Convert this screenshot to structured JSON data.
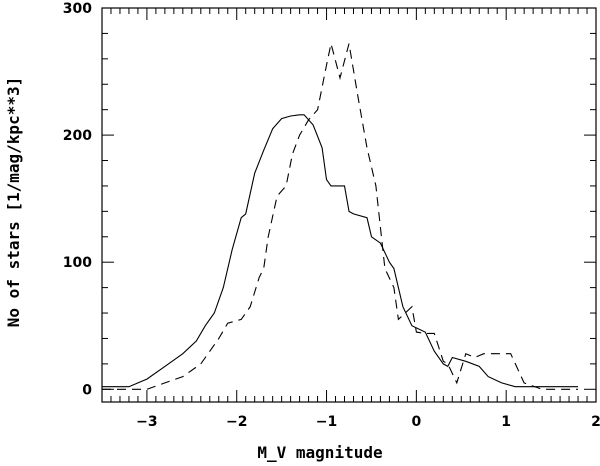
{
  "chart_data": {
    "type": "line",
    "title": "",
    "xlabel": "M_V magnitude",
    "ylabel": "No of stars [1/mag/kpc**3]",
    "xlim": [
      -3.5,
      2
    ],
    "ylim": [
      -10,
      300
    ],
    "x_ticks": [
      -3,
      -2,
      -1,
      0,
      1,
      2
    ],
    "x_tick_labels": [
      "−3",
      "−2",
      "−1",
      "0",
      "1",
      "2"
    ],
    "y_ticks": [
      0,
      100,
      200,
      300
    ],
    "y_tick_labels": [
      "0",
      "100",
      "200",
      "300"
    ],
    "grid": false,
    "legend": "none",
    "series": [
      {
        "style": "solid",
        "points": [
          [
            -3.5,
            2
          ],
          [
            -3.2,
            2
          ],
          [
            -3.0,
            8
          ],
          [
            -2.8,
            18
          ],
          [
            -2.6,
            28
          ],
          [
            -2.45,
            38
          ],
          [
            -2.35,
            50
          ],
          [
            -2.25,
            60
          ],
          [
            -2.15,
            80
          ],
          [
            -2.05,
            110
          ],
          [
            -1.95,
            135
          ],
          [
            -1.9,
            138
          ],
          [
            -1.8,
            170
          ],
          [
            -1.7,
            188
          ],
          [
            -1.6,
            205
          ],
          [
            -1.5,
            213
          ],
          [
            -1.4,
            215
          ],
          [
            -1.3,
            216
          ],
          [
            -1.25,
            216
          ],
          [
            -1.15,
            208
          ],
          [
            -1.05,
            190
          ],
          [
            -1.0,
            165
          ],
          [
            -0.95,
            160
          ],
          [
            -0.8,
            160
          ],
          [
            -0.75,
            140
          ],
          [
            -0.7,
            138
          ],
          [
            -0.55,
            135
          ],
          [
            -0.5,
            120
          ],
          [
            -0.4,
            115
          ],
          [
            -0.3,
            100
          ],
          [
            -0.25,
            95
          ],
          [
            -0.15,
            65
          ],
          [
            -0.05,
            50
          ],
          [
            0.1,
            45
          ],
          [
            0.2,
            30
          ],
          [
            0.3,
            20
          ],
          [
            0.35,
            18
          ],
          [
            0.4,
            25
          ],
          [
            0.55,
            22
          ],
          [
            0.7,
            18
          ],
          [
            0.8,
            10
          ],
          [
            0.95,
            5
          ],
          [
            1.1,
            2
          ],
          [
            1.3,
            2
          ],
          [
            1.5,
            2
          ],
          [
            1.8,
            2
          ]
        ]
      },
      {
        "style": "dashed",
        "points": [
          [
            -3.5,
            0
          ],
          [
            -3.0,
            0
          ],
          [
            -2.8,
            5
          ],
          [
            -2.6,
            10
          ],
          [
            -2.4,
            20
          ],
          [
            -2.3,
            30
          ],
          [
            -2.2,
            40
          ],
          [
            -2.1,
            52
          ],
          [
            -1.95,
            55
          ],
          [
            -1.85,
            65
          ],
          [
            -1.75,
            88
          ],
          [
            -1.7,
            95
          ],
          [
            -1.65,
            120
          ],
          [
            -1.55,
            152
          ],
          [
            -1.45,
            160
          ],
          [
            -1.38,
            185
          ],
          [
            -1.3,
            200
          ],
          [
            -1.2,
            212
          ],
          [
            -1.1,
            220
          ],
          [
            -1.0,
            255
          ],
          [
            -0.95,
            272
          ],
          [
            -0.85,
            245
          ],
          [
            -0.75,
            272
          ],
          [
            -0.65,
            230
          ],
          [
            -0.55,
            190
          ],
          [
            -0.45,
            160
          ],
          [
            -0.35,
            95
          ],
          [
            -0.25,
            80
          ],
          [
            -0.2,
            55
          ],
          [
            -0.05,
            65
          ],
          [
            0.0,
            45
          ],
          [
            0.1,
            44
          ],
          [
            0.2,
            44
          ],
          [
            0.3,
            22
          ],
          [
            0.35,
            20
          ],
          [
            0.45,
            5
          ],
          [
            0.55,
            28
          ],
          [
            0.65,
            25
          ],
          [
            0.75,
            28
          ],
          [
            1.05,
            28
          ],
          [
            1.2,
            5
          ],
          [
            1.4,
            0
          ],
          [
            1.8,
            0
          ]
        ]
      }
    ]
  }
}
